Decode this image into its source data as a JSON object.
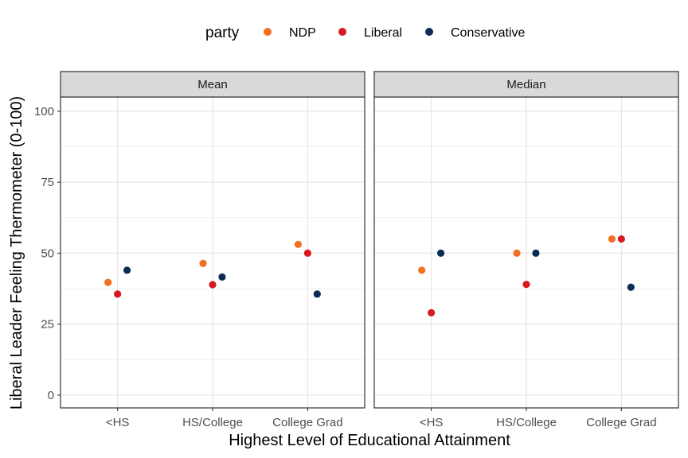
{
  "legend": {
    "title": "party",
    "items": [
      {
        "label": "NDP",
        "color": "#F37021"
      },
      {
        "label": "Liberal",
        "color": "#D71920"
      },
      {
        "label": "Conservative",
        "color": "#0C2C56"
      }
    ]
  },
  "chart_data": {
    "type": "scatter",
    "xlabel": "Highest Level of Educational Attainment",
    "ylabel": "Liberal Leader Feeling Thermometer (0-100)",
    "categories": [
      "<HS",
      "HS/College",
      "College Grad"
    ],
    "ylim": [
      -4.5,
      105
    ],
    "yticks": [
      0,
      25,
      50,
      75,
      100
    ],
    "grid": true,
    "legend_position": "top",
    "panels": [
      {
        "title": "Mean",
        "series": [
          {
            "name": "NDP",
            "color": "#F37021",
            "values": [
              39.7,
              46.4,
              53.1
            ]
          },
          {
            "name": "Liberal",
            "color": "#D71920",
            "values": [
              35.6,
              38.9,
              50.0
            ]
          },
          {
            "name": "Conservative",
            "color": "#0C2C56",
            "values": [
              44.0,
              41.6,
              35.6
            ]
          }
        ]
      },
      {
        "title": "Median",
        "series": [
          {
            "name": "NDP",
            "color": "#F37021",
            "values": [
              44,
              50,
              55
            ]
          },
          {
            "name": "Liberal",
            "color": "#D71920",
            "values": [
              29,
              39,
              55
            ]
          },
          {
            "name": "Conservative",
            "color": "#0C2C56",
            "values": [
              50,
              50,
              38
            ]
          }
        ]
      }
    ]
  }
}
